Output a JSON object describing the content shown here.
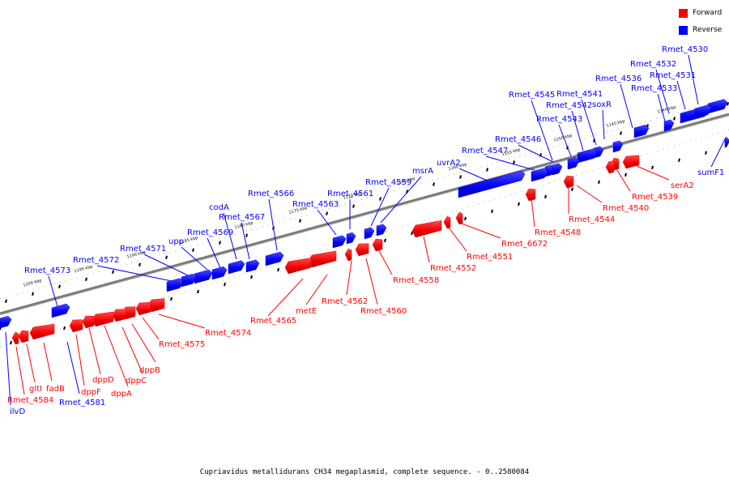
{
  "legend": {
    "forward": {
      "label": "Forward",
      "color": "#ff0000"
    },
    "reverse": {
      "label": "Reverse",
      "color": "#0000ff"
    }
  },
  "caption": "Cupriavidus metallidurans CH34 megaplasmid, complete sequence. - 0..2580084",
  "ticks": [
    "1200 kbp",
    "1195 kbp",
    "1190 kbp",
    "1185 kbp",
    "1180 kbp",
    "1175 kbp",
    "1170 kbp",
    "1165 kbp",
    "1160 kbp",
    "1155 kbp",
    "1150 kbp",
    "1145 kbp",
    "1140 kbp"
  ],
  "reverse_genes": [
    "Rmet_4530",
    "Rmet_4532",
    "Rmet_4531",
    "Rmet_4533",
    "Rmet_4536",
    "soxR",
    "Rmet_4541",
    "Rmet_4542",
    "Rmet_4545",
    "Rmet_4543",
    "Rmet_4546",
    "Rmet_4547",
    "uvrA2",
    "msrA",
    "Rmet_4559",
    "Rmet_4561",
    "Rmet_4563",
    "Rmet_4566",
    "codA",
    "Rmet_4567",
    "Rmet_4569",
    "upp",
    "Rmet_4571",
    "Rmet_4572",
    "Rmet_4573",
    "sumF1",
    "Rmet_4581",
    "ilvD"
  ],
  "forward_genes": [
    "serA2",
    "Rmet_4539",
    "Rmet_4540",
    "Rmet_4544",
    "Rmet_4548",
    "Rmet_6672",
    "Rmet_4551",
    "Rmet_4552",
    "Rmet_4558",
    "Rmet_4560",
    "Rmet_4562",
    "metE",
    "Rmet_4565",
    "Rmet_4574",
    "Rmet_4575",
    "dppB",
    "dppC",
    "dppA",
    "dppD",
    "dppF",
    "fadB",
    "gltI",
    "Rmet_4584"
  ]
}
